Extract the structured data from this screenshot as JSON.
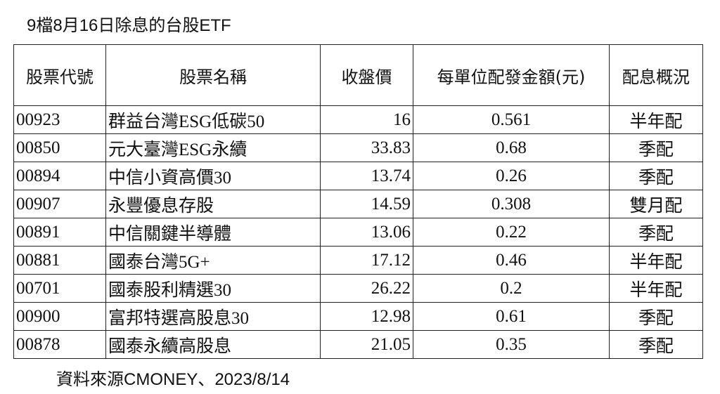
{
  "header": {
    "title": "9檔8月16日除息的台股ETF"
  },
  "table": {
    "columns": [
      "股票代號",
      "股票名稱",
      "收盤價",
      "每單位配發金額(元)",
      "配息概況"
    ],
    "rows": [
      [
        "00923",
        "群益台灣ESG低碳50",
        "16",
        "0.561",
        "半年配"
      ],
      [
        "00850",
        "元大臺灣ESG永續",
        "33.83",
        "0.68",
        "季配"
      ],
      [
        "00894",
        "中信小資高價30",
        "13.74",
        "0.26",
        "季配"
      ],
      [
        "00907",
        "永豐優息存股",
        "14.59",
        "0.308",
        "雙月配"
      ],
      [
        "00891",
        "中信關鍵半導體",
        "13.06",
        "0.22",
        "季配"
      ],
      [
        "00881",
        "國泰台灣5G+",
        "17.12",
        "0.46",
        "半年配"
      ],
      [
        "00701",
        "國泰股利精選30",
        "26.22",
        "0.2",
        "半年配"
      ],
      [
        "00900",
        "富邦特選高股息30",
        "12.98",
        "0.61",
        "季配"
      ],
      [
        "00878",
        "國泰永續高股息",
        "21.05",
        "0.35",
        "季配"
      ]
    ]
  },
  "footer": {
    "source": "資料來源CMONEY、2023/8/14"
  }
}
